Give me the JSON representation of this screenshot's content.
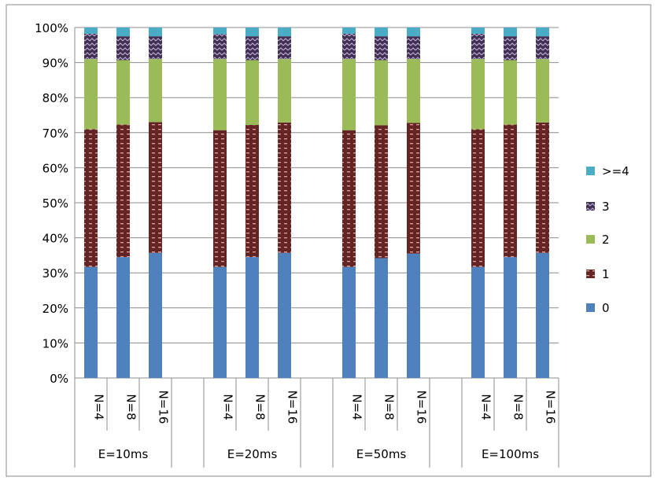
{
  "chart_data": {
    "type": "bar",
    "stacked": true,
    "percent": true,
    "title": "",
    "xlabel": "",
    "ylabel": "",
    "ylim": [
      0,
      100
    ],
    "yticks": [
      "0%",
      "10%",
      "20%",
      "30%",
      "40%",
      "50%",
      "60%",
      "70%",
      "80%",
      "90%",
      "100%"
    ],
    "grid": true,
    "legend_position": "right",
    "groups": [
      "E=10ms",
      "E=20ms",
      "E=50ms",
      "E=100ms"
    ],
    "categories": [
      "N=4",
      "N=8",
      "N=16",
      "N=4",
      "N=8",
      "N=16",
      "N=4",
      "N=8",
      "N=16",
      "N=4",
      "N=8",
      "N=16"
    ],
    "series": [
      {
        "name": "0",
        "color": "#4f81bd",
        "values": [
          31.7,
          34.5,
          35.7,
          31.7,
          34.5,
          35.7,
          31.7,
          34.2,
          35.5,
          31.7,
          34.5,
          35.7
        ]
      },
      {
        "name": "1",
        "color": "#632523",
        "values": [
          39.3,
          37.8,
          37.3,
          39.0,
          37.7,
          37.2,
          39.0,
          37.9,
          37.3,
          39.3,
          37.8,
          37.2
        ]
      },
      {
        "name": "2",
        "color": "#9bbb59",
        "values": [
          20.0,
          18.4,
          18.0,
          20.3,
          18.5,
          18.1,
          20.3,
          18.6,
          18.2,
          20.0,
          18.4,
          18.1
        ]
      },
      {
        "name": "3",
        "color": "#403152",
        "values": [
          7.2,
          6.8,
          6.5,
          7.1,
          6.8,
          6.5,
          7.2,
          6.8,
          6.5,
          7.2,
          6.8,
          6.5
        ]
      },
      {
        "name": ">=4",
        "color": "#4bacc6",
        "values": [
          1.8,
          2.5,
          2.5,
          1.9,
          2.5,
          2.5,
          1.8,
          2.5,
          2.5,
          1.8,
          2.5,
          2.5
        ]
      }
    ]
  }
}
